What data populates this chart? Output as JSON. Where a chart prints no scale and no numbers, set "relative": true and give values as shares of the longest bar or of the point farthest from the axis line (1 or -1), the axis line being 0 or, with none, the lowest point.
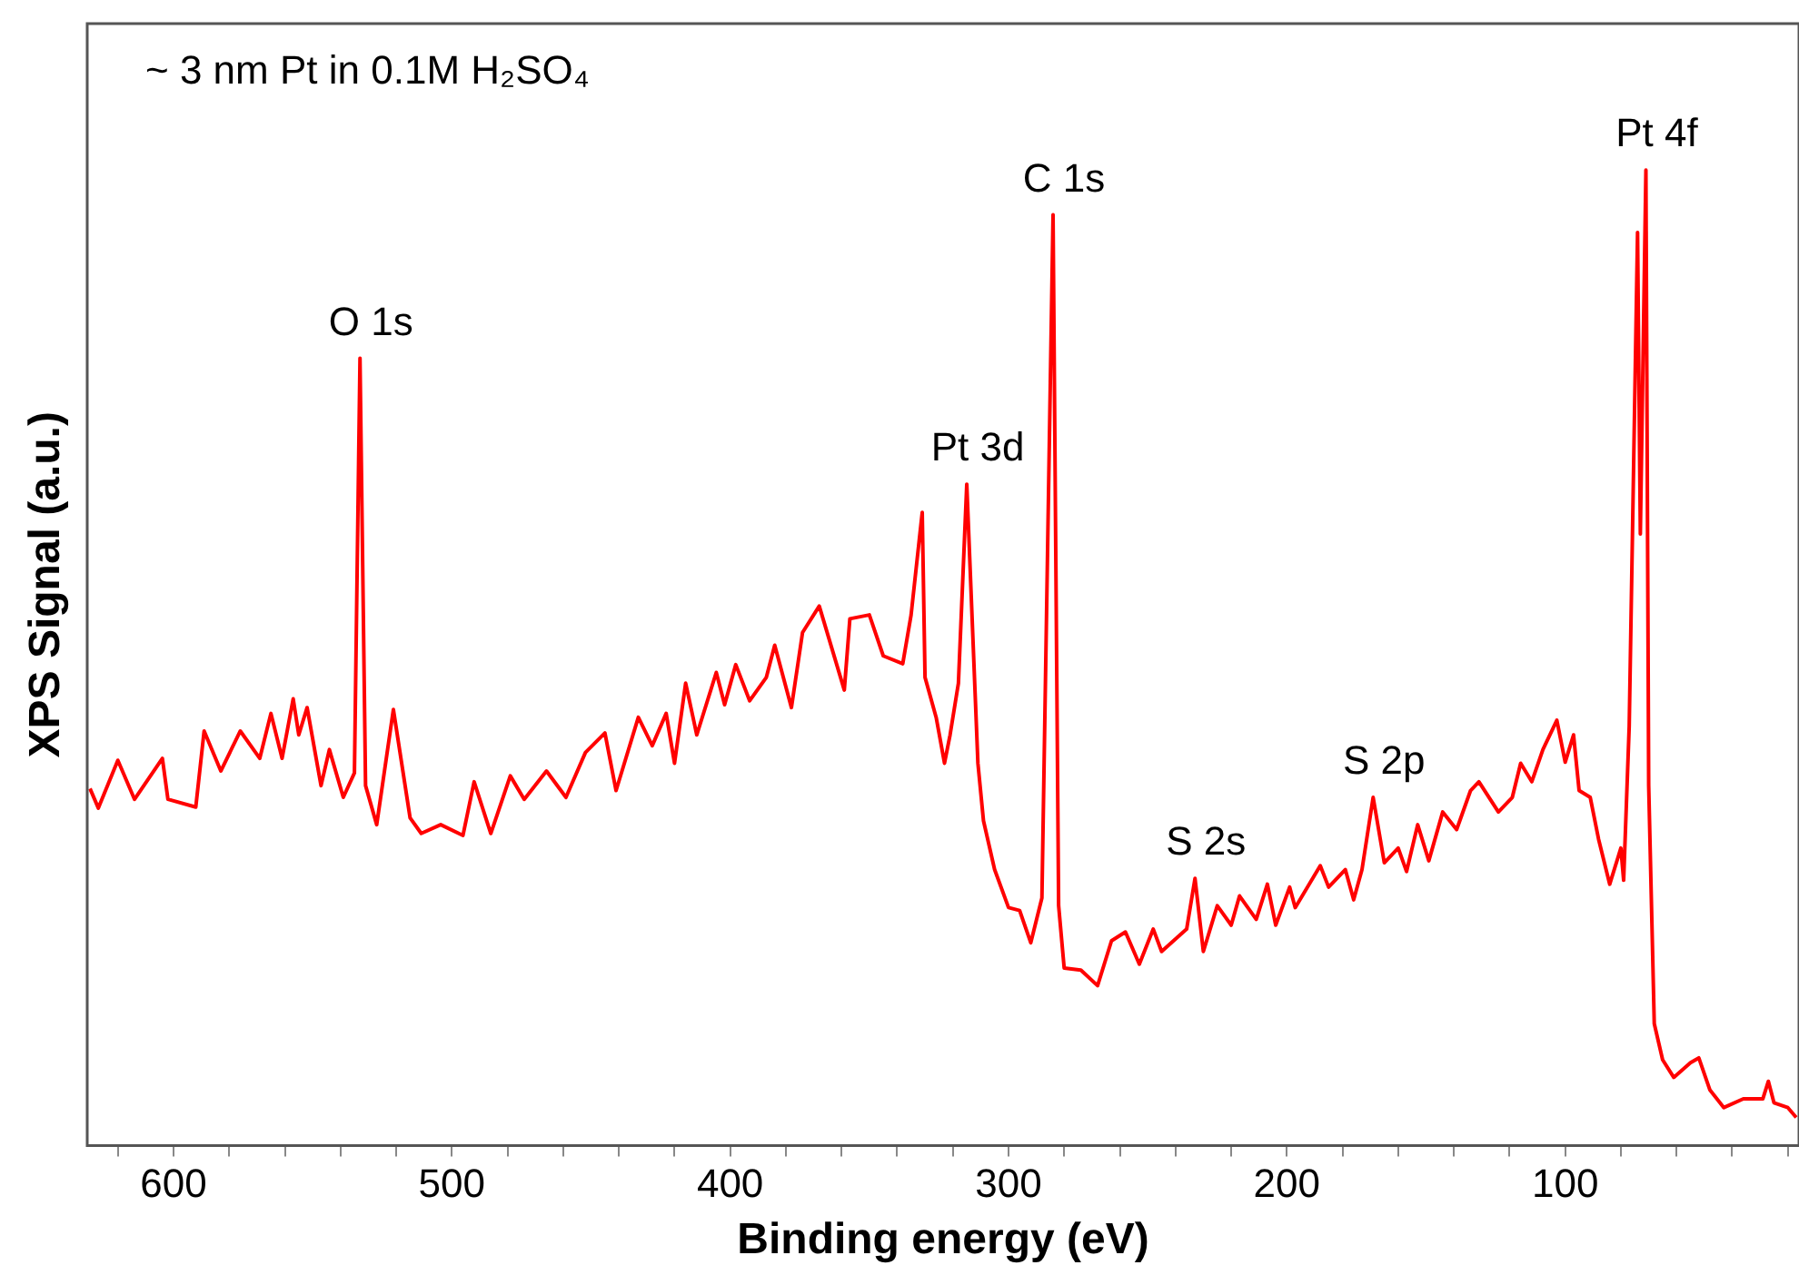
{
  "chart_data": {
    "type": "line",
    "relative": true,
    "xlabel": "Binding energy (eV)",
    "ylabel": "XPS Signal (a.u.)",
    "annotations": [
      "~ 3 nm Pt in 0.1M H₂SO₄",
      {
        "text": "O 1s",
        "x": 533,
        "y": 0.807
      },
      {
        "text": "Pt 3d",
        "x": 315,
        "y": 0.678
      },
      {
        "text": "C 1s",
        "x": 284,
        "y": 0.954
      },
      {
        "text": "S 2s",
        "x": 233,
        "y": 0.274
      },
      {
        "text": "S 2p",
        "x": 169,
        "y": 0.357
      },
      {
        "text": "Pt 4f",
        "x": 71,
        "y": 1.0
      }
    ],
    "xlim": [
      631,
      16
    ],
    "xticks": [
      {
        "value": 620,
        "label": null
      },
      600,
      {
        "value": 580,
        "label": null
      },
      {
        "value": 560,
        "label": null
      },
      {
        "value": 540,
        "label": null
      },
      {
        "value": 520,
        "label": null
      },
      500,
      {
        "value": 480,
        "label": null
      },
      {
        "value": 460,
        "label": null
      },
      {
        "value": 440,
        "label": null
      },
      {
        "value": 420,
        "label": null
      },
      400,
      {
        "value": 380,
        "label": null
      },
      {
        "value": 360,
        "label": null
      },
      {
        "value": 340,
        "label": null
      },
      {
        "value": 320,
        "label": null
      },
      300,
      {
        "value": 280,
        "label": null
      },
      {
        "value": 260,
        "label": null
      },
      {
        "value": 240,
        "label": null
      },
      {
        "value": 220,
        "label": null
      },
      200,
      {
        "value": 180,
        "label": null
      },
      {
        "value": 160,
        "label": null
      },
      {
        "value": 140,
        "label": null
      },
      {
        "value": 120,
        "label": null
      },
      100,
      {
        "value": 80,
        "label": null
      },
      {
        "value": 60,
        "label": null
      },
      {
        "value": 40,
        "label": null
      },
      {
        "value": 20,
        "label": null
      }
    ],
    "grid": false,
    "legend": false,
    "marker": "none",
    "line_style": "solid",
    "series": [
      {
        "color": "#ff0000",
        "x": [
          630,
          627,
          620,
          614,
          604,
          602,
          592,
          589,
          583,
          576,
          569,
          565,
          561,
          557,
          555,
          552,
          547,
          544,
          539,
          535,
          533,
          531,
          527,
          521,
          515,
          511,
          504,
          496,
          492,
          486,
          479,
          474,
          466,
          459,
          452,
          445,
          441,
          433,
          428,
          423,
          420,
          416,
          412,
          405,
          402,
          398,
          393,
          387,
          384,
          378,
          374,
          368,
          359,
          357,
          350,
          345,
          338,
          335,
          331,
          330,
          326,
          323,
          321,
          318,
          315,
          311,
          309,
          305,
          300,
          296,
          292,
          288,
          284,
          282,
          280,
          274,
          268,
          263,
          258,
          253,
          248,
          245,
          236,
          233,
          230,
          225,
          220,
          217,
          211,
          207,
          204,
          199,
          197,
          188,
          185,
          179,
          176,
          173,
          169,
          165,
          160,
          157,
          153,
          149,
          144,
          139,
          134,
          131,
          124,
          119,
          116,
          112,
          108,
          103,
          100,
          97,
          95,
          91,
          88,
          84,
          80,
          79,
          77,
          74,
          73,
          71,
          70,
          68,
          65,
          61,
          55,
          52,
          48,
          43,
          36,
          29,
          27,
          25,
          20,
          17
        ],
        "values": [
          0.366,
          0.346,
          0.395,
          0.355,
          0.397,
          0.355,
          0.347,
          0.425,
          0.384,
          0.425,
          0.397,
          0.443,
          0.397,
          0.458,
          0.421,
          0.449,
          0.369,
          0.406,
          0.357,
          0.382,
          0.807,
          0.369,
          0.329,
          0.447,
          0.336,
          0.32,
          0.329,
          0.318,
          0.373,
          0.32,
          0.379,
          0.355,
          0.384,
          0.357,
          0.403,
          0.423,
          0.364,
          0.439,
          0.41,
          0.443,
          0.392,
          0.474,
          0.421,
          0.485,
          0.452,
          0.493,
          0.456,
          0.48,
          0.513,
          0.449,
          0.526,
          0.553,
          0.467,
          0.54,
          0.544,
          0.502,
          0.494,
          0.544,
          0.649,
          0.48,
          0.439,
          0.392,
          0.421,
          0.474,
          0.678,
          0.392,
          0.333,
          0.283,
          0.244,
          0.241,
          0.208,
          0.254,
          0.954,
          0.246,
          0.182,
          0.18,
          0.164,
          0.21,
          0.219,
          0.186,
          0.222,
          0.199,
          0.222,
          0.274,
          0.199,
          0.246,
          0.226,
          0.256,
          0.232,
          0.268,
          0.226,
          0.265,
          0.244,
          0.287,
          0.265,
          0.283,
          0.252,
          0.283,
          0.357,
          0.29,
          0.305,
          0.281,
          0.329,
          0.292,
          0.342,
          0.324,
          0.364,
          0.373,
          0.342,
          0.357,
          0.392,
          0.373,
          0.406,
          0.436,
          0.393,
          0.421,
          0.364,
          0.357,
          0.314,
          0.268,
          0.305,
          0.272,
          0.43,
          0.936,
          0.627,
          1.0,
          0.369,
          0.125,
          0.088,
          0.07,
          0.085,
          0.09,
          0.057,
          0.039,
          0.048,
          0.048,
          0.066,
          0.044,
          0.039,
          0.029
        ]
      }
    ]
  }
}
